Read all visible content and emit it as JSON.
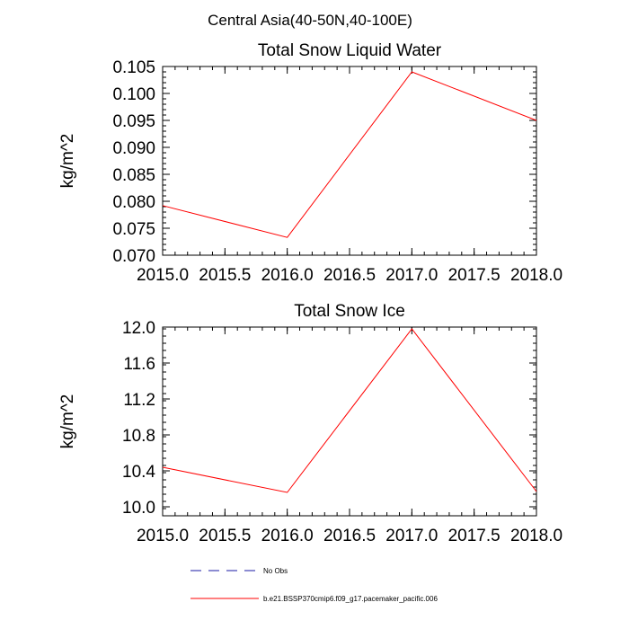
{
  "figure": {
    "suptitle": "Central Asia(40-50N,40-100E)"
  },
  "legend": [
    {
      "label": "No Obs",
      "color": "#1a1aa6",
      "dash": "dashed"
    },
    {
      "label": "b.e21.BSSP370cmip6.f09_g17.pacemaker_pacific.006",
      "color": "#ff0000",
      "dash": "solid"
    }
  ],
  "chart_data": [
    {
      "type": "line",
      "title": "Total Snow Liquid Water",
      "xlabel": "",
      "ylabel": "kg/m^2",
      "xlim": [
        2015.0,
        2018.0
      ],
      "ylim": [
        0.07,
        0.105
      ],
      "xticks": [
        "2015.0",
        "2015.5",
        "2016.0",
        "2016.5",
        "2017.0",
        "2017.5",
        "2018.0"
      ],
      "xtick_values": [
        2015.0,
        2015.5,
        2016.0,
        2016.5,
        2017.0,
        2017.5,
        2018.0
      ],
      "yticks": [
        "0.070",
        "0.075",
        "0.080",
        "0.085",
        "0.090",
        "0.095",
        "0.100",
        "0.105"
      ],
      "ytick_values": [
        0.07,
        0.075,
        0.08,
        0.085,
        0.09,
        0.095,
        0.1,
        0.105
      ],
      "grid": false,
      "series": [
        {
          "name": "b.e21.BSSP370cmip6.f09_g17.pacemaker_pacific.006",
          "color": "#ff0000",
          "x": [
            2015,
            2016,
            2017,
            2018
          ],
          "y": [
            0.0792,
            0.0733,
            0.104,
            0.095
          ]
        }
      ]
    },
    {
      "type": "line",
      "title": "Total Snow Ice",
      "xlabel": "",
      "ylabel": "kg/m^2",
      "xlim": [
        2015.0,
        2018.0
      ],
      "ylim": [
        9.9,
        12.0
      ],
      "xticks": [
        "2015.0",
        "2015.5",
        "2016.0",
        "2016.5",
        "2017.0",
        "2017.5",
        "2018.0"
      ],
      "xtick_values": [
        2015.0,
        2015.5,
        2016.0,
        2016.5,
        2017.0,
        2017.5,
        2018.0
      ],
      "yticks": [
        "10.0",
        "10.4",
        "10.8",
        "11.2",
        "11.6",
        "12.0"
      ],
      "ytick_values": [
        10.0,
        10.4,
        10.8,
        11.2,
        11.6,
        12.0
      ],
      "grid": false,
      "series": [
        {
          "name": "b.e21.BSSP370cmip6.f09_g17.pacemaker_pacific.006",
          "color": "#ff0000",
          "x": [
            2015,
            2016,
            2017,
            2018
          ],
          "y": [
            10.44,
            10.16,
            11.98,
            10.17
          ]
        }
      ]
    }
  ]
}
